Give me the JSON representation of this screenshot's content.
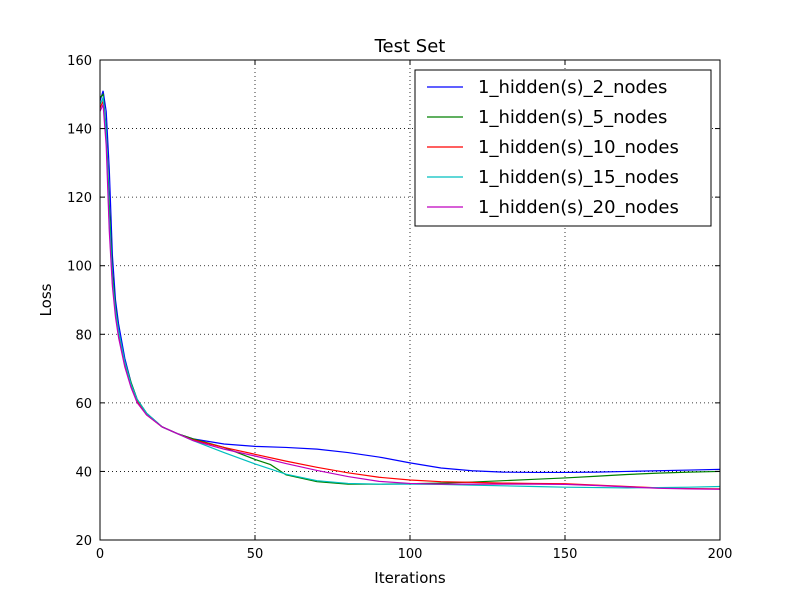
{
  "chart_data": {
    "type": "line",
    "title": "Test Set",
    "xlabel": "Iterations",
    "ylabel": "Loss",
    "xlim": [
      0,
      200
    ],
    "ylim": [
      20,
      160
    ],
    "xticks": [
      0,
      50,
      100,
      150,
      200
    ],
    "yticks": [
      20,
      40,
      60,
      80,
      100,
      120,
      140,
      160
    ],
    "grid": true,
    "legend_position": "top-right",
    "series": [
      {
        "name": "1_hidden(s)_2_nodes",
        "color": "#0000ff",
        "x": [
          0,
          1,
          2,
          3,
          4,
          5,
          6,
          8,
          10,
          12,
          15,
          20,
          25,
          30,
          40,
          50,
          60,
          70,
          80,
          90,
          100,
          110,
          120,
          130,
          140,
          150,
          160,
          170,
          180,
          190,
          200
        ],
        "y": [
          148,
          151,
          145,
          128,
          103,
          90,
          83,
          73,
          66,
          61,
          57,
          53,
          51,
          49.5,
          48,
          47.3,
          47,
          46.5,
          45.5,
          44.2,
          42.5,
          41,
          40.2,
          39.8,
          39.7,
          39.7,
          39.8,
          40,
          40.2,
          40.4,
          40.6
        ]
      },
      {
        "name": "1_hidden(s)_5_nodes",
        "color": "#008000",
        "x": [
          0,
          1,
          2,
          3,
          4,
          5,
          6,
          8,
          10,
          12,
          15,
          20,
          25,
          30,
          40,
          50,
          55,
          60,
          70,
          80,
          90,
          100,
          110,
          120,
          130,
          140,
          150,
          160,
          170,
          180,
          190,
          200
        ],
        "y": [
          149,
          150,
          140,
          118,
          98,
          88,
          81,
          72,
          66,
          61,
          57,
          53,
          51,
          49.5,
          47,
          43.5,
          42,
          39,
          37,
          36.3,
          36.3,
          36.4,
          36.6,
          36.9,
          37.3,
          37.7,
          38.1,
          38.6,
          39.1,
          39.5,
          39.8,
          40
        ]
      },
      {
        "name": "1_hidden(s)_10_nodes",
        "color": "#ff0000",
        "x": [
          0,
          1,
          2,
          3,
          4,
          5,
          6,
          8,
          10,
          12,
          15,
          20,
          25,
          30,
          40,
          50,
          60,
          70,
          80,
          90,
          100,
          110,
          120,
          130,
          140,
          150,
          160,
          170,
          180,
          190,
          200
        ],
        "y": [
          146,
          148,
          138,
          112,
          95,
          86,
          80,
          71,
          65,
          60.5,
          56.5,
          53,
          51,
          49.2,
          47,
          45,
          43,
          41.2,
          39.6,
          38.3,
          37.5,
          37,
          36.8,
          36.6,
          36.5,
          36.4,
          36,
          35.6,
          35.2,
          35,
          34.9
        ]
      },
      {
        "name": "1_hidden(s)_15_nodes",
        "color": "#00bfbf",
        "x": [
          0,
          1,
          2,
          3,
          4,
          5,
          6,
          8,
          10,
          12,
          15,
          20,
          25,
          30,
          40,
          50,
          60,
          70,
          80,
          90,
          100,
          110,
          120,
          130,
          140,
          150,
          160,
          170,
          180,
          190,
          200
        ],
        "y": [
          147,
          149,
          139,
          114,
          96,
          87,
          81,
          72,
          65.5,
          61,
          57,
          53,
          51,
          49,
          45.5,
          42.2,
          39.2,
          37.3,
          36.5,
          36.3,
          36.3,
          36.2,
          36,
          35.8,
          35.6,
          35.4,
          35.3,
          35.2,
          35.3,
          35.4,
          35.6
        ]
      },
      {
        "name": "1_hidden(s)_20_nodes",
        "color": "#bf00bf",
        "x": [
          0,
          1,
          2,
          3,
          4,
          5,
          6,
          8,
          10,
          12,
          15,
          20,
          25,
          30,
          40,
          50,
          60,
          70,
          80,
          90,
          100,
          110,
          120,
          130,
          140,
          150,
          160,
          170,
          180,
          190,
          200
        ],
        "y": [
          145,
          147,
          135,
          110,
          94,
          85,
          79,
          70.5,
          64.5,
          60,
          56.5,
          53,
          51,
          49,
          46.5,
          44.5,
          42.3,
          40.3,
          38.5,
          37.1,
          36.5,
          36.3,
          36.3,
          36.3,
          36.3,
          36.2,
          35.9,
          35.5,
          35.1,
          34.9,
          34.8
        ]
      }
    ]
  }
}
